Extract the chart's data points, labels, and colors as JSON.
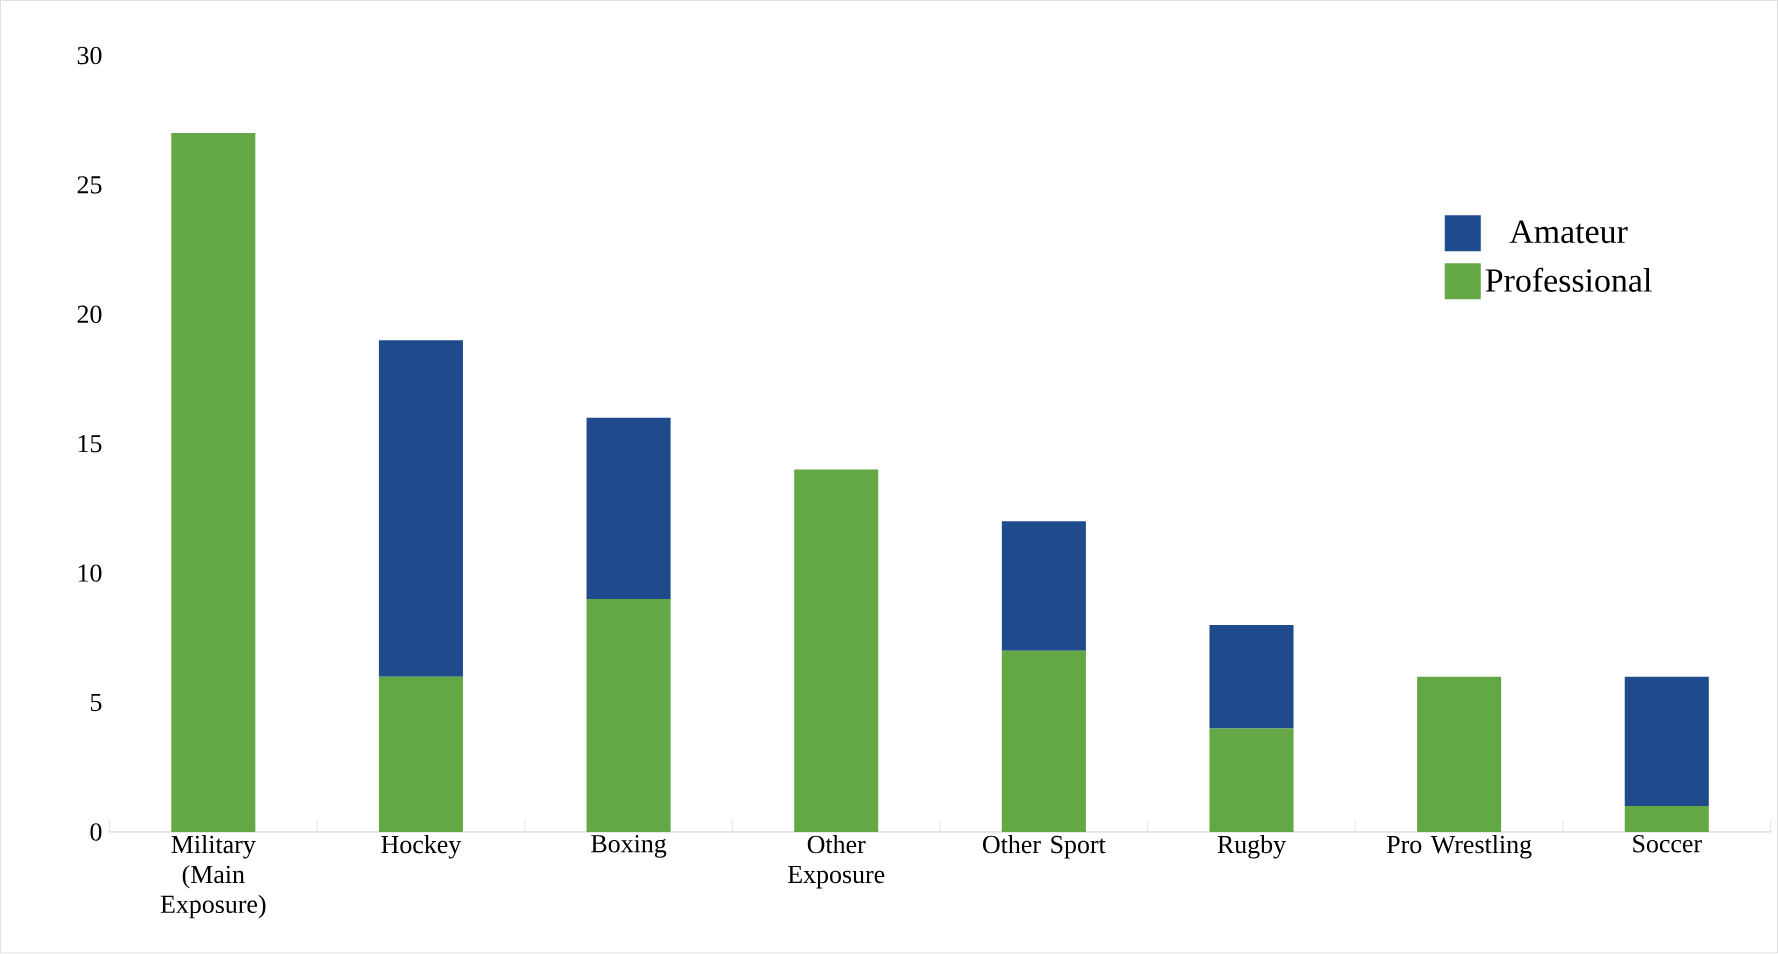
{
  "chart_data": {
    "type": "bar",
    "stacked": true,
    "categories": [
      "Military (Main Exposure)",
      "Hockey",
      "Boxing",
      "Other Exposure",
      "Other Sport",
      "Rugby",
      "Pro Wrestling",
      "Soccer"
    ],
    "series": [
      {
        "name": "Professional",
        "color": "#63a844",
        "values": [
          27,
          6,
          9,
          14,
          7,
          4,
          6,
          1
        ]
      },
      {
        "name": "Amateur",
        "color": "#1f4a8c",
        "values": [
          0,
          13,
          7,
          0,
          5,
          4,
          0,
          5
        ]
      }
    ],
    "ylim": [
      0,
      30
    ],
    "yticks": [
      0,
      5,
      10,
      15,
      20,
      25,
      30
    ],
    "legend": "right"
  }
}
